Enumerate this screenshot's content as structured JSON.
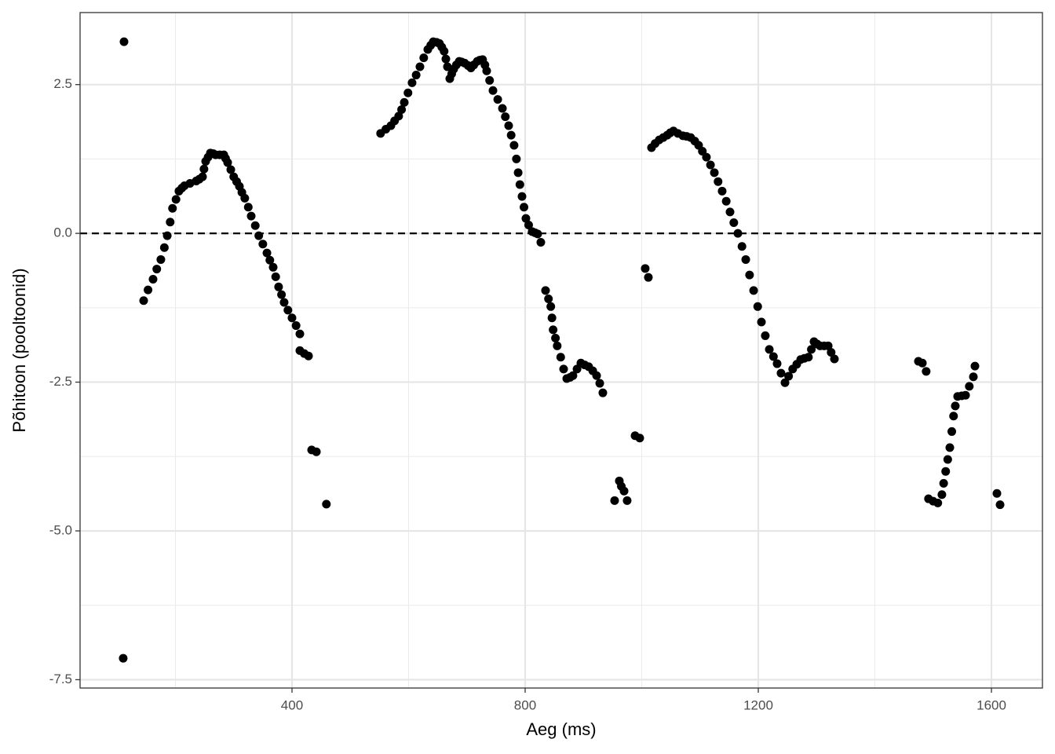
{
  "chart_data": {
    "type": "scatter",
    "xlabel": "Aeg (ms)",
    "ylabel": "Põhitoon (pooltoonid)",
    "xlim": [
      36.4,
      1687.5
    ],
    "ylim": [
      -7.64,
      3.71
    ],
    "xticks": [
      400,
      800,
      1200,
      1600
    ],
    "xminorticks": [
      200,
      600,
      1000,
      1400
    ],
    "yticks": [
      {
        "value": -7.5,
        "label": "-7.5"
      },
      {
        "value": -5,
        "label": "-5.0"
      },
      -2.5,
      {
        "value": 0,
        "label": "0.0"
      },
      2.5
    ],
    "yminorticks": [
      -6.25,
      -3.75,
      -1.25,
      1.25
    ],
    "grid": true,
    "hline": 0,
    "color": "#000000",
    "x": [
      111.8,
      110.4,
      145.5,
      153,
      161.6,
      168,
      175,
      181,
      186,
      191,
      195,
      201,
      206,
      211,
      215.5,
      225,
      235.7,
      241,
      246.5,
      249,
      251.9,
      256,
      260,
      265,
      269,
      276,
      283,
      286,
      289.6,
      295,
      300,
      305,
      309.8,
      314,
      319,
      325,
      330,
      337,
      343,
      350,
      357,
      362,
      367.7,
      372,
      377,
      382,
      386.5,
      393,
      400,
      407,
      413.5,
      413.5,
      421,
      428.3,
      433.7,
      441.8,
      459,
      552,
      561,
      569.7,
      576,
      583,
      588,
      592.6,
      599,
      606,
      613,
      619.5,
      626,
      633,
      638,
      642.4,
      648,
      653,
      657,
      661,
      664,
      666.7,
      670.7,
      674,
      677.4,
      682,
      686.9,
      691,
      696.3,
      702,
      707,
      712,
      717.8,
      722,
      727,
      731,
      734,
      739,
      744.8,
      753,
      761,
      766,
      771.7,
      776,
      781,
      785,
      788,
      791,
      794.6,
      798,
      801.3,
      806,
      812,
      817,
      821.5,
      826.9,
      835,
      840,
      844,
      846,
      848,
      852,
      855,
      861,
      866,
      871.4,
      877,
      882,
      889,
      895.6,
      902,
      909,
      916,
      922.6,
      928,
      933.3,
      953.5,
      961.6,
      965,
      969.7,
      975,
      988.6,
      996.6,
      1006,
      1011.4,
      1016.8,
      1023,
      1030,
      1037,
      1043.8,
      1049,
      1054.5,
      1062,
      1070.7,
      1077,
      1084,
      1091,
      1097.6,
      1104,
      1111,
      1118,
      1124.6,
      1131,
      1138,
      1145,
      1151.5,
      1158,
      1165,
      1172,
      1178.5,
      1185,
      1192,
      1199,
      1205.4,
      1212,
      1218.9,
      1226,
      1232.3,
      1239,
      1245.8,
      1252,
      1259,
      1266,
      1272.7,
      1279,
      1286,
      1291,
      1295.6,
      1301,
      1306,
      1313,
      1319.9,
      1325,
      1330.6,
      1474.7,
      1481.5,
      1488,
      1492,
      1500,
      1508,
      1515,
      1518,
      1521.5,
      1525,
      1528.6,
      1532,
      1535,
      1538,
      1542,
      1549,
      1555.6,
      1562,
      1569,
      1571.7,
      1609.4,
      1614.8
    ],
    "values": [
      3.22,
      -7.14,
      -1.13,
      -0.95,
      -0.77,
      -0.6,
      -0.44,
      -0.24,
      -0.04,
      0.19,
      0.42,
      0.57,
      0.71,
      0.76,
      0.8,
      0.84,
      0.88,
      0.91,
      0.95,
      1.08,
      1.21,
      1.28,
      1.35,
      1.34,
      1.32,
      1.32,
      1.32,
      1.26,
      1.19,
      1.07,
      0.95,
      0.87,
      0.79,
      0.69,
      0.59,
      0.44,
      0.29,
      0.13,
      -0.04,
      -0.18,
      -0.33,
      -0.45,
      -0.57,
      -0.73,
      -0.9,
      -1.03,
      -1.16,
      -1.29,
      -1.42,
      -1.55,
      -1.69,
      -1.97,
      -2.02,
      -2.06,
      -3.64,
      -3.67,
      -4.55,
      1.68,
      1.75,
      1.81,
      1.89,
      1.97,
      2.08,
      2.2,
      2.36,
      2.53,
      2.66,
      2.8,
      2.95,
      3.09,
      3.16,
      3.22,
      3.21,
      3.19,
      3.13,
      3.06,
      2.93,
      2.8,
      2.6,
      2.68,
      2.76,
      2.83,
      2.89,
      2.88,
      2.86,
      2.82,
      2.78,
      2.83,
      2.89,
      2.91,
      2.92,
      2.83,
      2.73,
      2.57,
      2.4,
      2.25,
      2.1,
      1.96,
      1.81,
      1.65,
      1.48,
      1.25,
      1.02,
      0.82,
      0.62,
      0.44,
      0.25,
      0.14,
      0.03,
      0.01,
      -0.01,
      -0.15,
      -0.96,
      -1.1,
      -1.23,
      -1.42,
      -1.62,
      -1.76,
      -1.89,
      -2.08,
      -2.28,
      -2.44,
      -2.42,
      -2.39,
      -2.28,
      -2.18,
      -2.21,
      -2.24,
      -2.31,
      -2.39,
      -2.52,
      -2.68,
      -4.49,
      -4.16,
      -4.25,
      -4.33,
      -4.49,
      -3.4,
      -3.44,
      -0.59,
      -0.74,
      1.44,
      1.51,
      1.57,
      1.61,
      1.65,
      1.69,
      1.72,
      1.68,
      1.64,
      1.63,
      1.61,
      1.55,
      1.48,
      1.38,
      1.28,
      1.15,
      1.02,
      0.87,
      0.71,
      0.54,
      0.36,
      0.18,
      0,
      -0.22,
      -0.44,
      -0.7,
      -0.96,
      -1.23,
      -1.49,
      -1.72,
      -1.95,
      -2.07,
      -2.19,
      -2.35,
      -2.51,
      -2.4,
      -2.28,
      -2.2,
      -2.12,
      -2.1,
      -2.08,
      -1.95,
      -1.82,
      -1.86,
      -1.89,
      -1.89,
      -1.89,
      -2.0,
      -2.11,
      -2.15,
      -2.18,
      -2.32,
      -4.46,
      -4.5,
      -4.53,
      -4.39,
      -4.2,
      -4.0,
      -3.8,
      -3.6,
      -3.33,
      -3.07,
      -2.9,
      -2.74,
      -2.73,
      -2.72,
      -2.57,
      -2.41,
      -2.23,
      -4.37,
      -4.56
    ]
  }
}
